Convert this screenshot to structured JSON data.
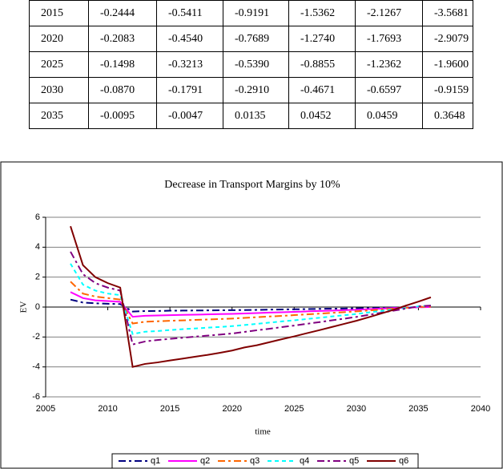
{
  "table": {
    "rows": [
      [
        "2015",
        "-0.2444",
        "-0.5411",
        "-0.9191",
        "-1.5362",
        "-2.1267",
        "-3.5681"
      ],
      [
        "2020",
        "-0.2083",
        "-0.4540",
        "-0.7689",
        "-1.2740",
        "-1.7693",
        "-2.9079"
      ],
      [
        "2025",
        "-0.1498",
        "-0.3213",
        "-0.5390",
        "-0.8855",
        "-1.2362",
        "-1.9600"
      ],
      [
        "2030",
        "-0.0870",
        "-0.1791",
        "-0.2910",
        "-0.4671",
        "-0.6597",
        "-0.9159"
      ],
      [
        "2035",
        "-0.0095",
        "-0.0047",
        "0.0135",
        "0.0452",
        "0.0459",
        "0.3648"
      ]
    ]
  },
  "chart_data": {
    "type": "line",
    "title": "Decrease in Transport Margins by 10%",
    "x_label": "time",
    "y_label": "EV",
    "x": [
      2007,
      2008,
      2009,
      2010,
      2011,
      2012,
      2013,
      2014,
      2015,
      2016,
      2017,
      2018,
      2019,
      2020,
      2021,
      2022,
      2023,
      2024,
      2025,
      2026,
      2027,
      2028,
      2029,
      2030,
      2031,
      2032,
      2033,
      2034,
      2035,
      2036
    ],
    "xlim": [
      2005,
      2040
    ],
    "xticks": [
      2005,
      2010,
      2015,
      2020,
      2025,
      2030,
      2035,
      2040
    ],
    "ylim": [
      -6,
      6
    ],
    "yticks": [
      -6,
      -4,
      -2,
      0,
      2,
      4,
      6
    ],
    "grid": true,
    "series": [
      {
        "name": "q1",
        "color": "#000080",
        "dash": "dashdot",
        "values": [
          0.5,
          0.3,
          0.25,
          0.22,
          0.2,
          -0.3,
          -0.27,
          -0.26,
          -0.2444,
          -0.237,
          -0.23,
          -0.223,
          -0.215,
          -0.2083,
          -0.2,
          -0.19,
          -0.17,
          -0.16,
          -0.1498,
          -0.14,
          -0.12,
          -0.11,
          -0.1,
          -0.087,
          -0.07,
          -0.06,
          -0.04,
          -0.03,
          -0.0095,
          0
        ]
      },
      {
        "name": "q2",
        "color": "#ff00ff",
        "dash": "solid",
        "values": [
          1.0,
          0.6,
          0.45,
          0.4,
          0.35,
          -0.65,
          -0.58,
          -0.56,
          -0.5411,
          -0.52,
          -0.51,
          -0.49,
          -0.47,
          -0.454,
          -0.43,
          -0.4,
          -0.37,
          -0.35,
          -0.3213,
          -0.29,
          -0.26,
          -0.24,
          -0.21,
          -0.1791,
          -0.14,
          -0.11,
          -0.07,
          -0.04,
          -0.0047,
          0
        ]
      },
      {
        "name": "q3",
        "color": "#ff6600",
        "dash": "dashdot",
        "values": [
          1.7,
          0.9,
          0.7,
          0.6,
          0.5,
          -1.1,
          -0.98,
          -0.95,
          -0.9191,
          -0.89,
          -0.86,
          -0.83,
          -0.8,
          -0.7689,
          -0.72,
          -0.68,
          -0.63,
          -0.59,
          -0.539,
          -0.49,
          -0.44,
          -0.39,
          -0.34,
          -0.291,
          -0.23,
          -0.17,
          -0.11,
          -0.05,
          0.0135,
          0.03
        ]
      },
      {
        "name": "q4",
        "color": "#00ffff",
        "dash": "dashed",
        "values": [
          2.9,
          1.5,
          1.1,
          0.9,
          0.8,
          -1.8,
          -1.65,
          -1.6,
          -1.5362,
          -1.48,
          -1.43,
          -1.38,
          -1.33,
          -1.274,
          -1.2,
          -1.12,
          -1.04,
          -0.96,
          -0.8855,
          -0.8,
          -0.72,
          -0.63,
          -0.55,
          -0.4671,
          -0.36,
          -0.26,
          -0.16,
          -0.06,
          0.0452,
          0.1
        ]
      },
      {
        "name": "q5",
        "color": "#800080",
        "dash": "dashdot",
        "values": [
          3.7,
          2.2,
          1.6,
          1.3,
          1.1,
          -2.5,
          -2.3,
          -2.2,
          -2.1267,
          -2.055,
          -1.98,
          -1.91,
          -1.84,
          -1.7693,
          -1.66,
          -1.55,
          -1.45,
          -1.34,
          -1.2362,
          -1.12,
          -1.01,
          -0.89,
          -0.78,
          -0.6597,
          -0.52,
          -0.38,
          -0.24,
          -0.1,
          0.0459,
          0.1
        ]
      },
      {
        "name": "q6",
        "color": "#800000",
        "dash": "solid",
        "values": [
          5.4,
          2.8,
          2.0,
          1.6,
          1.3,
          -4.0,
          -3.8,
          -3.7,
          -3.5681,
          -3.45,
          -3.32,
          -3.2,
          -3.06,
          -2.9079,
          -2.7,
          -2.55,
          -2.35,
          -2.15,
          -1.96,
          -1.75,
          -1.55,
          -1.34,
          -1.13,
          -0.9159,
          -0.68,
          -0.43,
          -0.18,
          0.1,
          0.3648,
          0.65
        ]
      }
    ]
  }
}
